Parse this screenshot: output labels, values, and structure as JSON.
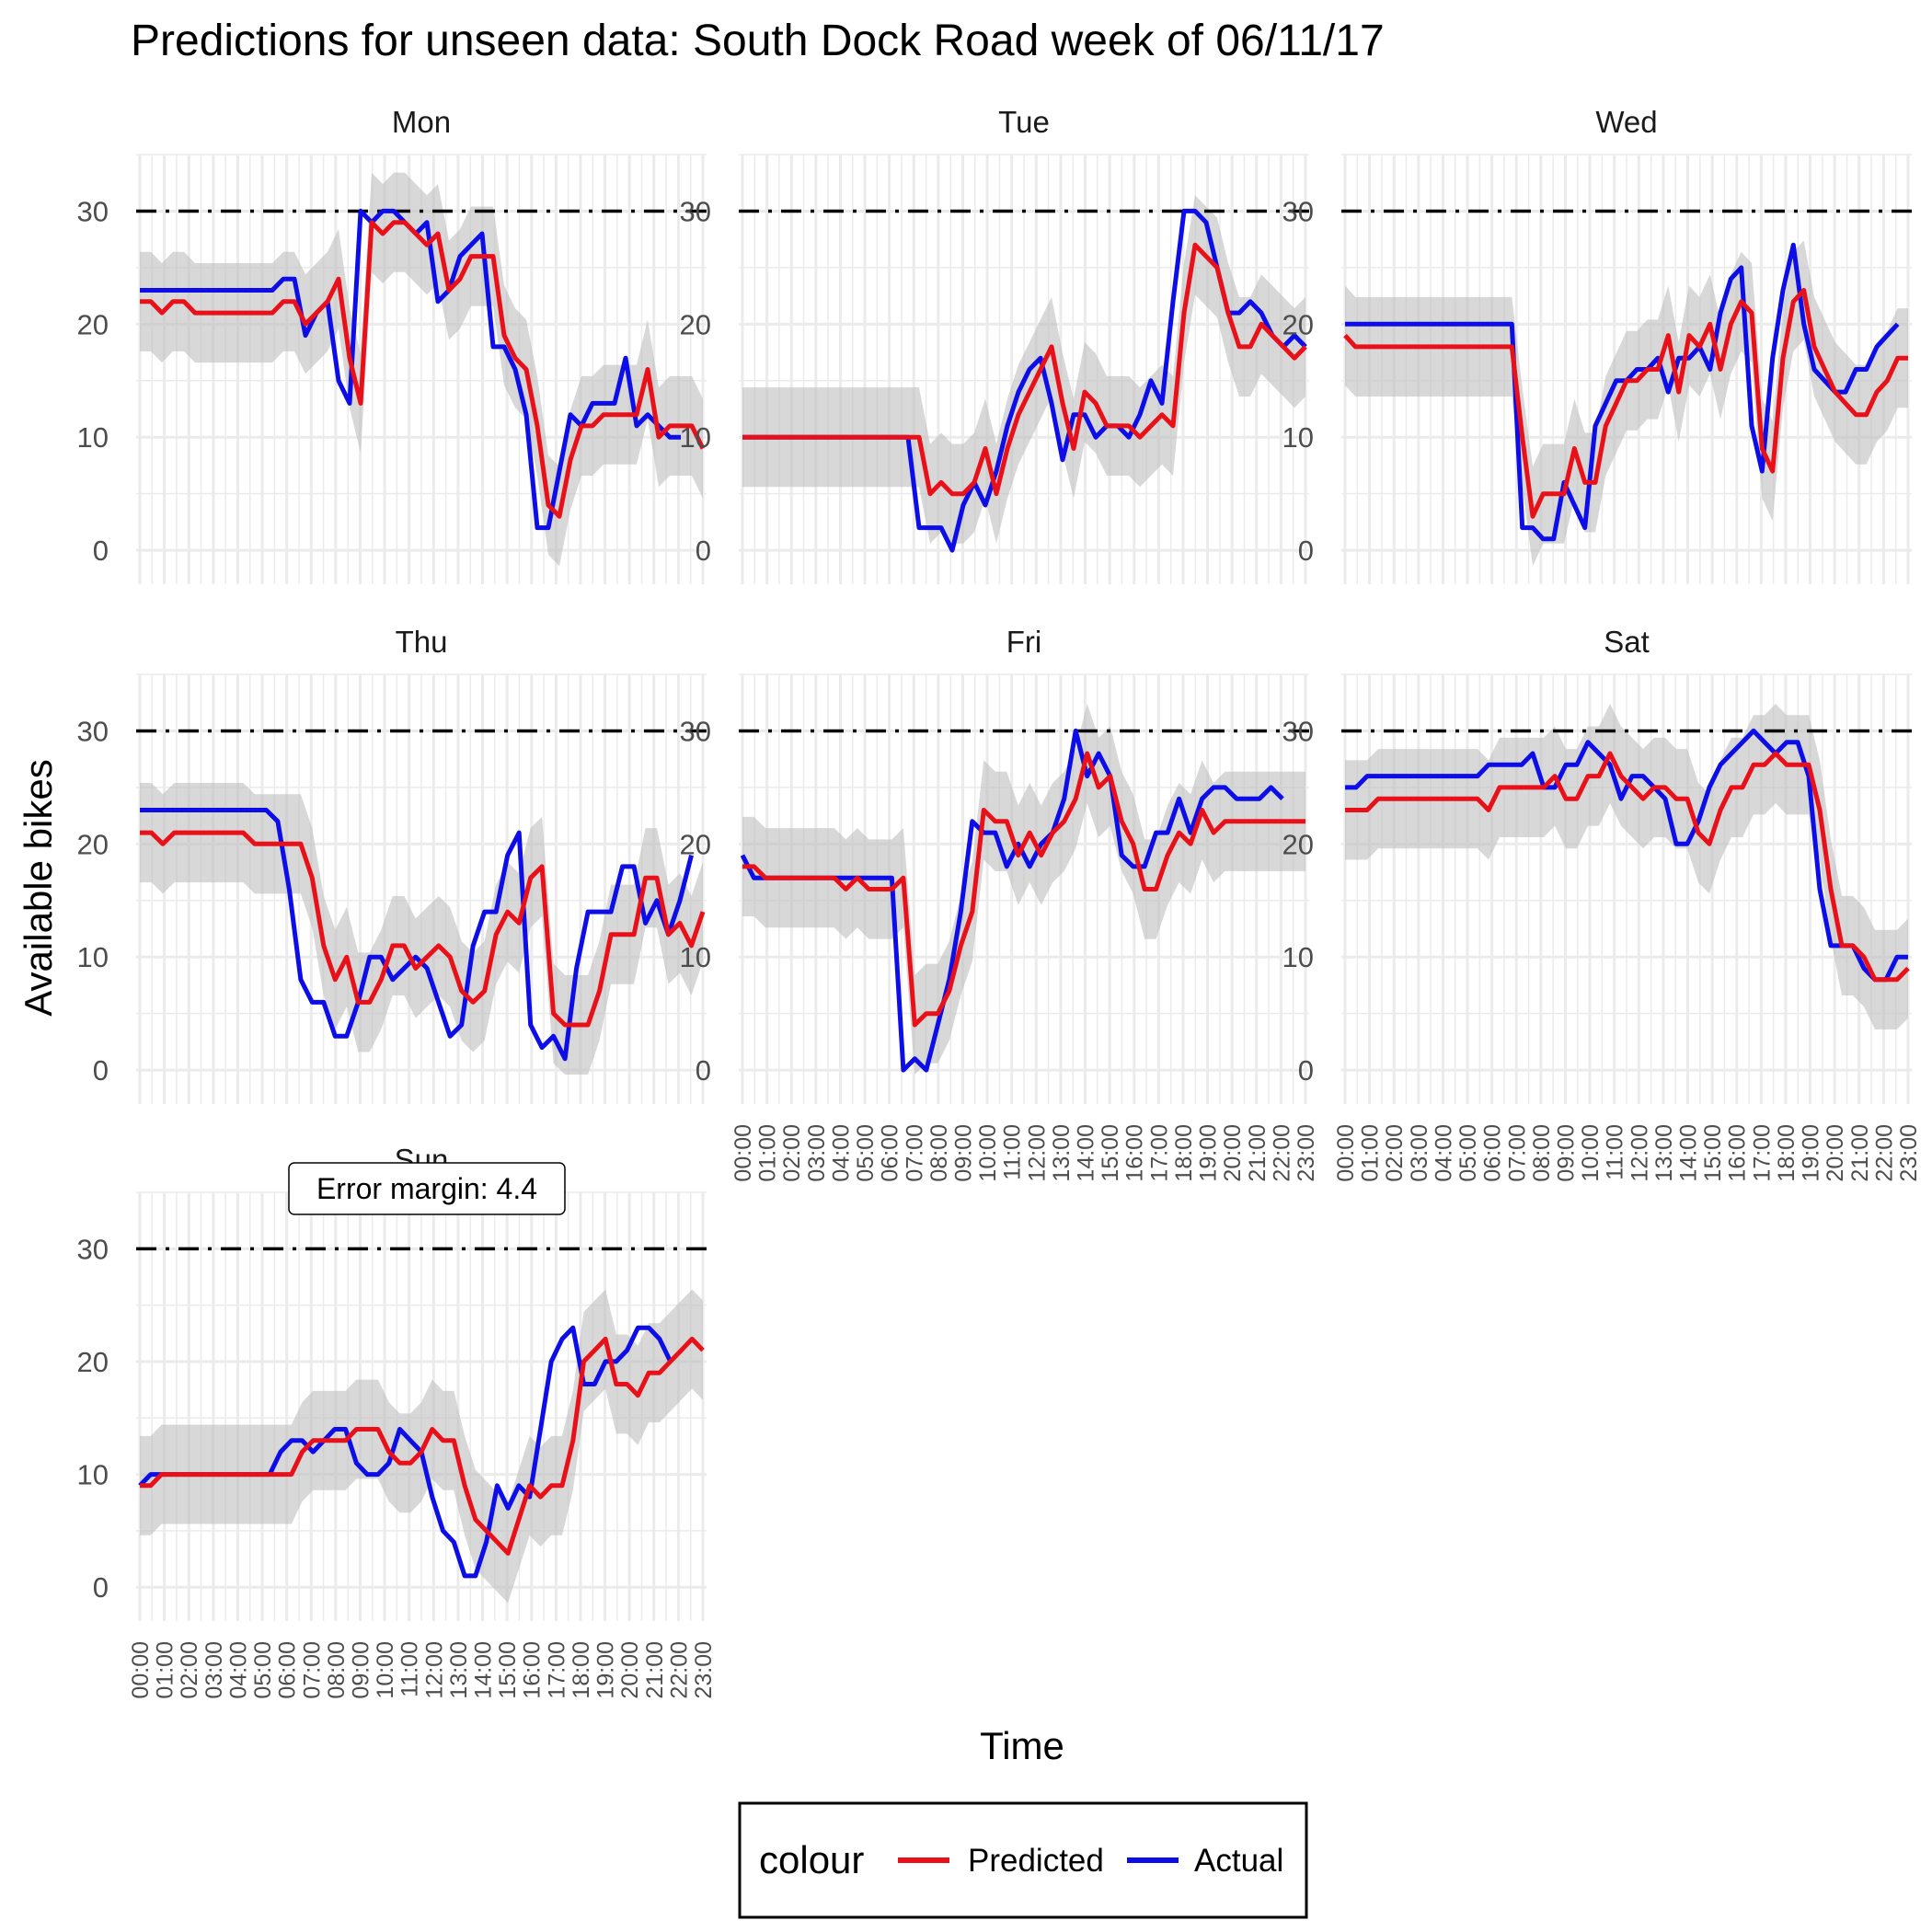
{
  "chart_data": {
    "type": "line",
    "title": "Predictions for unseen data: South Dock Road week of 06/11/17",
    "xlabel": "Time",
    "ylabel": "Available bikes",
    "ylim": [
      -3,
      35
    ],
    "yticks": [
      0,
      10,
      20,
      30
    ],
    "x_tick_labels": [
      "00:00",
      "01:00",
      "02:00",
      "03:00",
      "04:00",
      "05:00",
      "06:00",
      "07:00",
      "08:00",
      "09:00",
      "10:00",
      "11:00",
      "12:00",
      "13:00",
      "14:00",
      "15:00",
      "16:00",
      "17:00",
      "18:00",
      "19:00",
      "20:00",
      "21:00",
      "22:00",
      "23:00"
    ],
    "capacity_line": 30,
    "grid": true,
    "legend": {
      "title": "colour",
      "position": "bottom",
      "entries": [
        {
          "name": "Predicted",
          "color": "#e8111a"
        },
        {
          "name": "Actual",
          "color": "#0d0de8"
        }
      ]
    },
    "annotation": {
      "panel": "Sun",
      "text": "Error margin: 4.4"
    },
    "band_halfwidth": 4.4,
    "colors": {
      "predicted": "#e8111a",
      "actual": "#0d0de8",
      "band": "#bebebe",
      "capacity": "#000000",
      "grid": "#ebebeb"
    },
    "panels": [
      {
        "day": "Mon",
        "predicted": [
          22,
          22,
          21,
          22,
          22,
          21,
          21,
          21,
          21,
          21,
          21,
          21,
          21,
          22,
          22,
          20,
          21,
          22,
          24,
          17,
          13,
          29,
          28,
          29,
          29,
          28,
          27,
          28,
          23,
          24,
          26,
          26,
          26,
          19,
          17,
          16,
          11,
          4,
          3,
          8,
          11,
          11,
          12,
          12,
          12,
          12,
          16,
          10,
          11,
          11,
          11,
          9
        ],
        "actual": [
          23,
          23,
          23,
          23,
          23,
          23,
          23,
          23,
          23,
          23,
          23,
          23,
          23,
          24,
          24,
          19,
          21,
          22,
          15,
          13,
          30,
          29,
          30,
          30,
          29,
          28,
          29,
          22,
          23,
          26,
          27,
          28,
          18,
          18,
          16,
          12,
          2,
          2,
          7,
          12,
          11,
          13,
          13,
          13,
          17,
          11,
          12,
          11,
          10,
          10
        ]
      },
      {
        "day": "Tue",
        "predicted": [
          10,
          10,
          10,
          10,
          10,
          10,
          10,
          10,
          10,
          10,
          10,
          10,
          10,
          10,
          10,
          10,
          10,
          5,
          6,
          5,
          5,
          6,
          9,
          5,
          9,
          12,
          14,
          16,
          18,
          13,
          9,
          14,
          13,
          11,
          11,
          11,
          10,
          11,
          12,
          11,
          21,
          27,
          26,
          25,
          21,
          18,
          18,
          20,
          19,
          18,
          17,
          18
        ],
        "actual": [
          10,
          10,
          10,
          10,
          10,
          10,
          10,
          10,
          10,
          10,
          10,
          10,
          10,
          10,
          10,
          10,
          2,
          2,
          2,
          0,
          4,
          6,
          4,
          7,
          11,
          14,
          16,
          17,
          13,
          8,
          12,
          12,
          10,
          11,
          11,
          10,
          12,
          15,
          13,
          22,
          30,
          30,
          29,
          25,
          21,
          21,
          22,
          21,
          19,
          18,
          19,
          18
        ]
      },
      {
        "day": "Wed",
        "predicted": [
          19,
          18,
          18,
          18,
          18,
          18,
          18,
          18,
          18,
          18,
          18,
          18,
          18,
          18,
          18,
          18,
          18,
          10,
          3,
          5,
          5,
          5,
          9,
          6,
          6,
          11,
          13,
          15,
          15,
          16,
          16,
          19,
          14,
          19,
          18,
          20,
          16,
          20,
          22,
          21,
          9,
          7,
          17,
          22,
          23,
          18,
          16,
          14,
          13,
          12,
          12,
          14,
          15,
          17,
          17
        ],
        "actual": [
          20,
          20,
          20,
          20,
          20,
          20,
          20,
          20,
          20,
          20,
          20,
          20,
          20,
          20,
          20,
          20,
          20,
          2,
          2,
          1,
          1,
          6,
          4,
          2,
          11,
          13,
          15,
          15,
          16,
          16,
          17,
          14,
          17,
          17,
          18,
          16,
          21,
          24,
          25,
          11,
          7,
          17,
          23,
          27,
          20,
          16,
          15,
          14,
          14,
          16,
          16,
          18,
          19,
          20
        ]
      },
      {
        "day": "Thu",
        "predicted": [
          21,
          21,
          20,
          21,
          21,
          21,
          21,
          21,
          21,
          21,
          20,
          20,
          20,
          20,
          20,
          17,
          11,
          8,
          10,
          6,
          6,
          8,
          11,
          11,
          9,
          10,
          11,
          10,
          7,
          6,
          7,
          12,
          14,
          13,
          17,
          18,
          5,
          4,
          4,
          4,
          7,
          12,
          12,
          12,
          17,
          17,
          12,
          13,
          11,
          14
        ],
        "actual": [
          23,
          23,
          23,
          23,
          23,
          23,
          23,
          23,
          23,
          23,
          23,
          23,
          22,
          16,
          8,
          6,
          6,
          3,
          3,
          6,
          10,
          10,
          8,
          9,
          10,
          9,
          6,
          3,
          4,
          11,
          14,
          14,
          19,
          21,
          4,
          2,
          3,
          1,
          9,
          14,
          14,
          14,
          18,
          18,
          13,
          15,
          12,
          15,
          19
        ]
      },
      {
        "day": "Fri",
        "predicted": [
          18,
          18,
          17,
          17,
          17,
          17,
          17,
          17,
          17,
          16,
          17,
          16,
          16,
          16,
          17,
          4,
          5,
          5,
          7,
          11,
          14,
          23,
          22,
          22,
          19,
          21,
          19,
          21,
          22,
          24,
          28,
          25,
          26,
          22,
          20,
          16,
          16,
          19,
          21,
          20,
          23,
          21,
          22,
          22,
          22,
          22,
          22,
          22,
          22,
          22
        ],
        "actual": [
          19,
          17,
          17,
          17,
          17,
          17,
          17,
          17,
          17,
          17,
          17,
          17,
          17,
          17,
          0,
          1,
          0,
          4,
          8,
          14,
          22,
          21,
          21,
          18,
          20,
          18,
          20,
          21,
          24,
          30,
          26,
          28,
          26,
          19,
          18,
          18,
          21,
          21,
          24,
          21,
          24,
          25,
          25,
          24,
          24,
          24,
          25,
          24
        ]
      },
      {
        "day": "Sat",
        "predicted": [
          23,
          23,
          23,
          24,
          24,
          24,
          24,
          24,
          24,
          24,
          24,
          24,
          24,
          23,
          25,
          25,
          25,
          25,
          25,
          26,
          24,
          24,
          26,
          26,
          28,
          26,
          25,
          24,
          25,
          25,
          24,
          24,
          21,
          20,
          23,
          25,
          25,
          27,
          27,
          28,
          27,
          27,
          27,
          23,
          16,
          11,
          11,
          10,
          8,
          8,
          8,
          9
        ],
        "actual": [
          25,
          25,
          26,
          26,
          26,
          26,
          26,
          26,
          26,
          26,
          26,
          26,
          26,
          27,
          27,
          27,
          27,
          28,
          25,
          25,
          27,
          27,
          29,
          28,
          27,
          24,
          26,
          26,
          25,
          24,
          20,
          20,
          22,
          25,
          27,
          28,
          29,
          30,
          29,
          28,
          29,
          29,
          26,
          16,
          11,
          11,
          11,
          9,
          8,
          8,
          10,
          10
        ]
      },
      {
        "day": "Sun",
        "predicted": [
          9,
          9,
          10,
          10,
          10,
          10,
          10,
          10,
          10,
          10,
          10,
          10,
          10,
          10,
          10,
          12,
          13,
          13,
          13,
          13,
          14,
          14,
          14,
          12,
          11,
          11,
          12,
          14,
          13,
          13,
          9,
          6,
          5,
          4,
          3,
          6,
          9,
          8,
          9,
          9,
          13,
          20,
          21,
          22,
          18,
          18,
          17,
          19,
          19,
          20,
          21,
          22,
          21
        ],
        "actual": [
          9,
          10,
          10,
          10,
          10,
          10,
          10,
          10,
          10,
          10,
          10,
          10,
          10,
          12,
          13,
          13,
          12,
          13,
          14,
          14,
          11,
          10,
          10,
          11,
          14,
          13,
          12,
          8,
          5,
          4,
          1,
          1,
          4,
          9,
          7,
          9,
          8,
          14,
          20,
          22,
          23,
          18,
          18,
          20,
          20,
          21,
          23,
          23,
          22,
          20
        ]
      }
    ]
  }
}
